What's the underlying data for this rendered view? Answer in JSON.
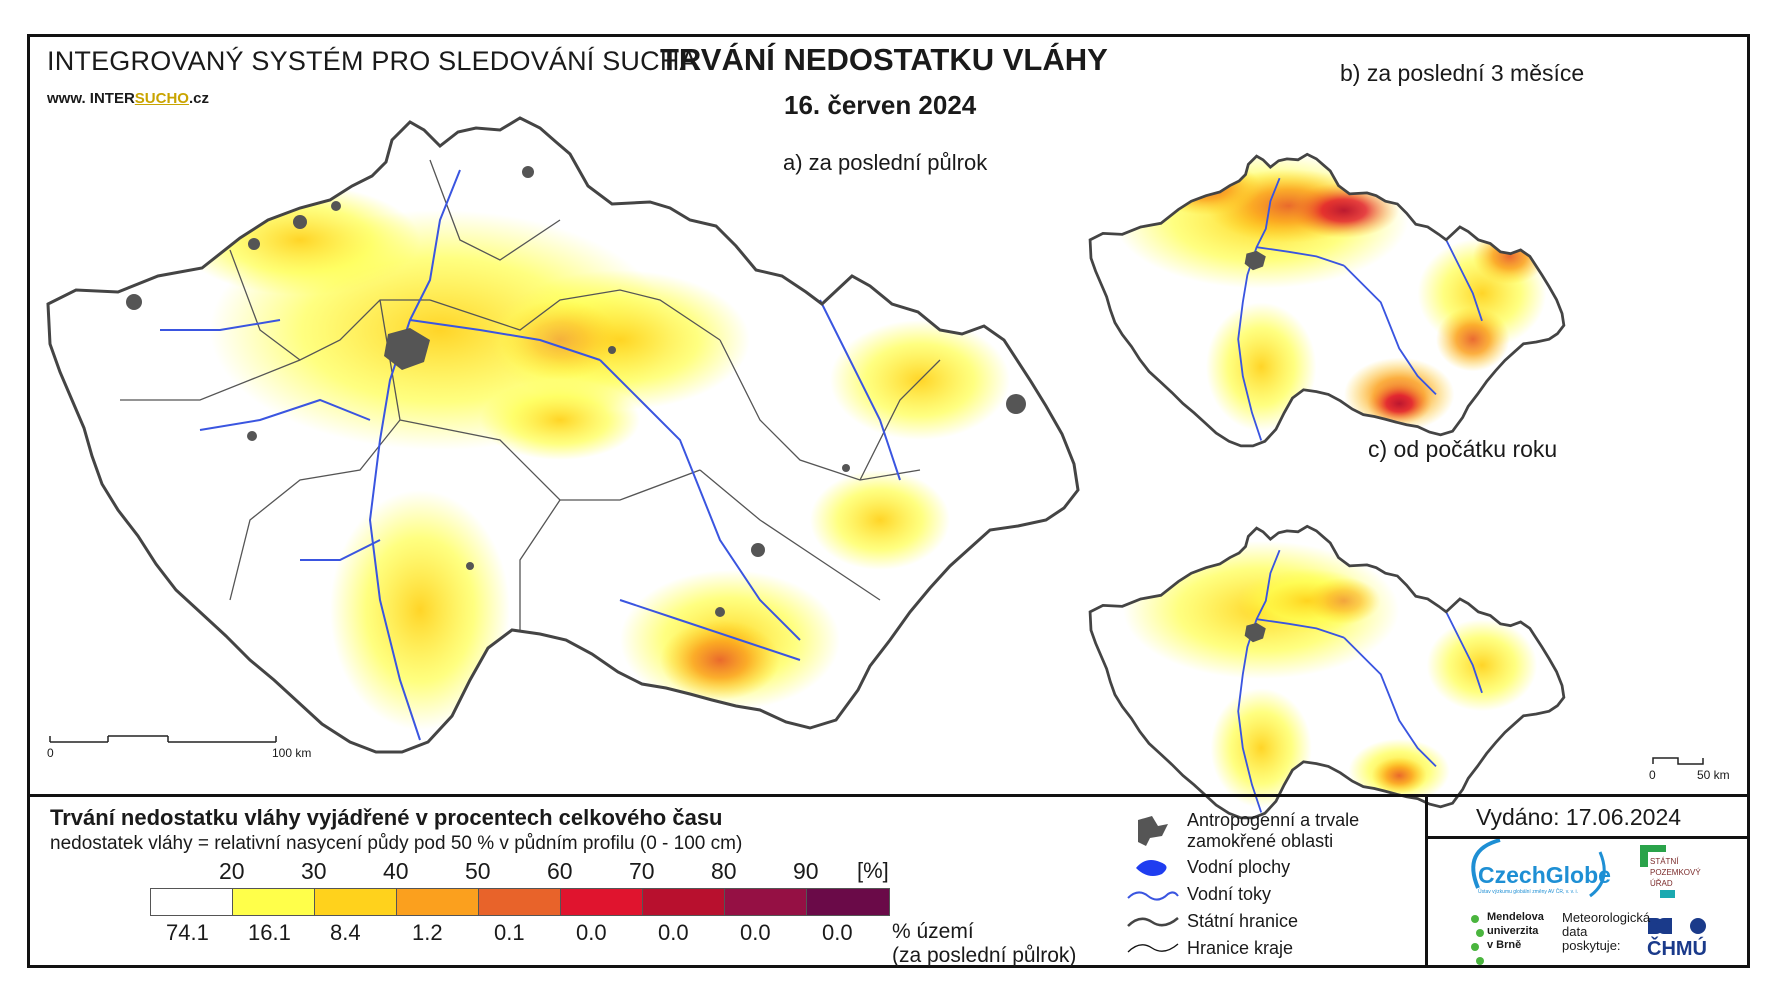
{
  "header": {
    "system_title": "INTEGROVANÝ SYSTÉM PRO SLEDOVÁNÍ SUCHA",
    "site_prefix": "www. INTER",
    "site_mid": "SUCHO",
    "site_suffix": ".cz",
    "title": "TRVÁNÍ NEDOSTATKU VLÁHY",
    "date": "16. červen 2024"
  },
  "maps": {
    "a_label": "a) za poslední půlrok",
    "b_label": "b) za poslední 3 měsíce",
    "c_label": "c) od počátku roku",
    "scale_main": {
      "start": "0",
      "end": "100 km"
    },
    "scale_small": {
      "start": "0",
      "end": "50 km"
    }
  },
  "legend": {
    "title": "Trvání nedostatku vláhy vyjádřené v procentech celkového času",
    "subtitle": "nedostatek vláhy = relativní nasycení půdy pod 50 % v půdním profilu (0 - 100 cm)",
    "unit": "[%]",
    "thresholds": [
      "20",
      "30",
      "40",
      "50",
      "60",
      "70",
      "80",
      "90"
    ],
    "colors": [
      "#ffffff",
      "#ffff4a",
      "#ffd21c",
      "#fba01e",
      "#e8632a",
      "#e0142e",
      "#b8102e",
      "#951044",
      "#6a0a48"
    ],
    "percent_area": [
      "74.1",
      "16.1",
      "8.4",
      "1.2",
      "0.1",
      "0.0",
      "0.0",
      "0.0",
      "0.0"
    ],
    "area_label_1": "% území",
    "area_label_2": "(za poslední půlrok)"
  },
  "map_legend": {
    "anthropogenic_1": "Antropogenní a trvale",
    "anthropogenic_2": "zamokřené oblasti",
    "water_bodies": "Vodní plochy",
    "rivers": "Vodní toky",
    "state_border": "Státní hranice",
    "region_border": "Hranice kraje"
  },
  "footer": {
    "issued": "Vydáno: 17.06.2024",
    "czechglobe": "CzechGlobe",
    "czechglobe_sub": "Ústav výzkumu globální změny AV ČR, v. v. i.",
    "spu": "STÁTNÍ\nPOZEMKOVÝ\nÚŘAD",
    "mendel": "Mendelova\nuniverzita\nv Brně",
    "meteo": "Meteorologická\ndata\nposkytuje:",
    "chmu": "ČHMÚ"
  },
  "palette": {
    "river": "#3a55e0",
    "urban": "#555555",
    "border": "#444444"
  },
  "icons": {
    "urban": "urban-area-icon",
    "water": "water-body-icon",
    "river": "river-line-icon",
    "state": "state-border-icon",
    "region": "region-border-icon"
  }
}
